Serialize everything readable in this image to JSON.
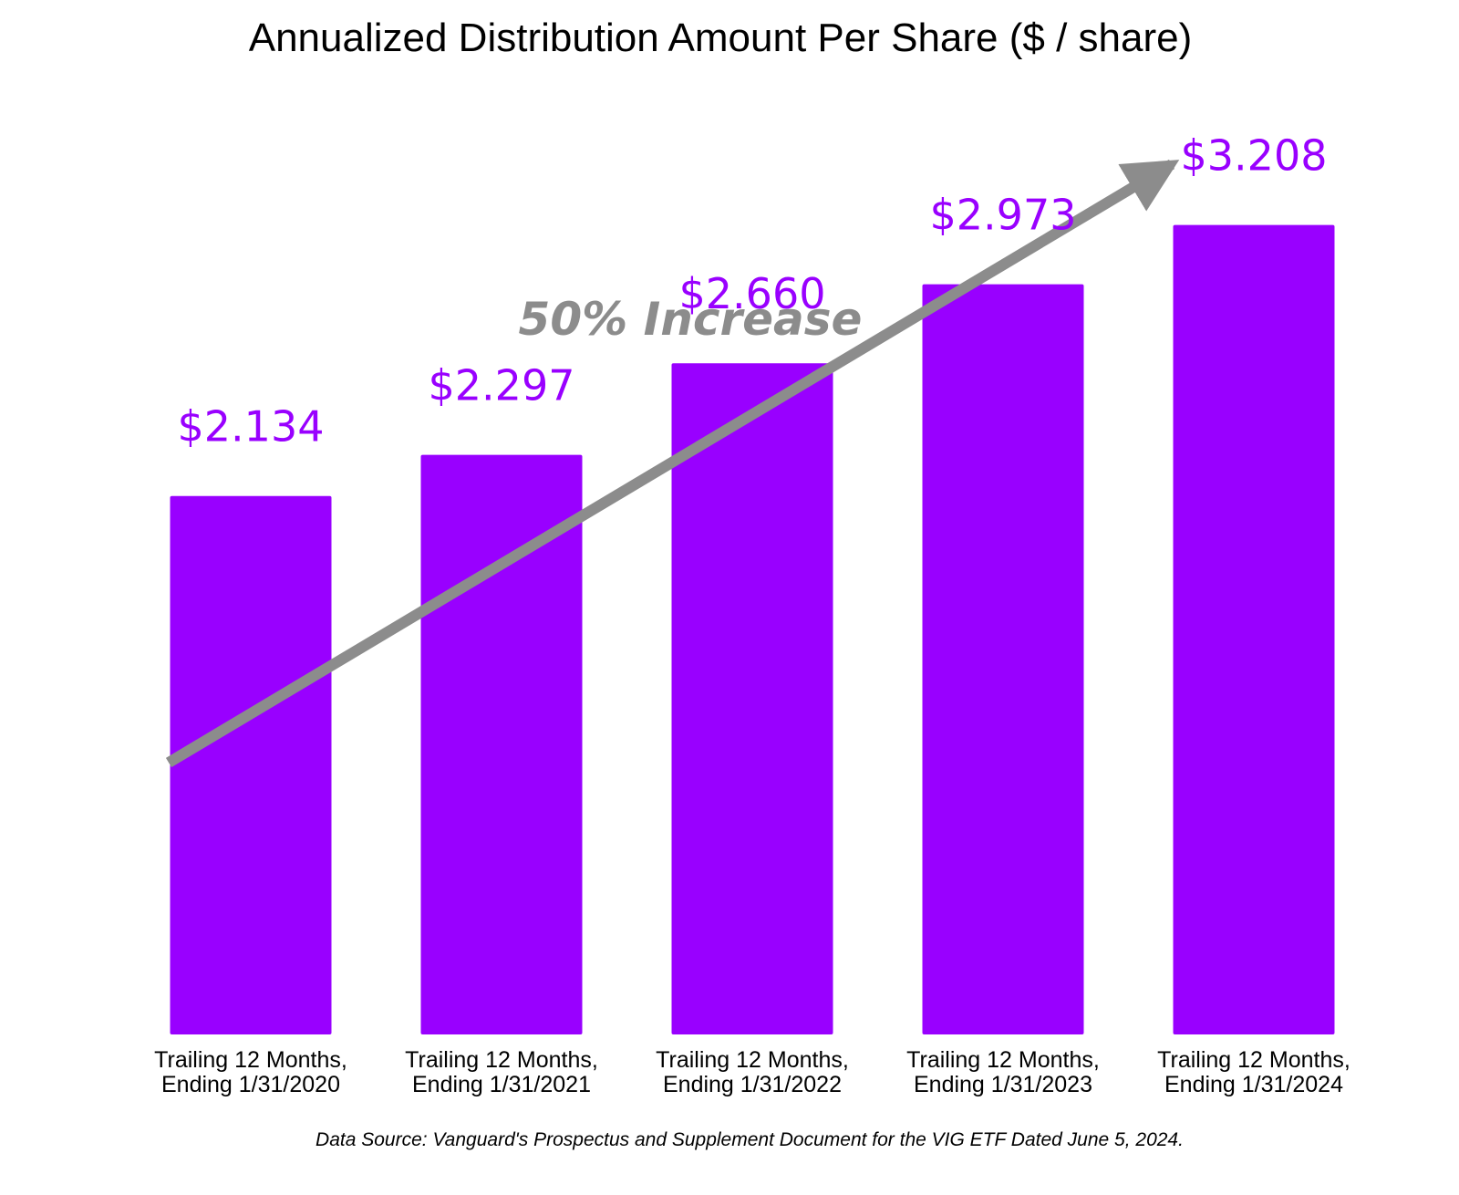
{
  "chart_data": {
    "type": "bar",
    "title": "Annualized Distribution Amount Per Share ($ / share)",
    "categories": [
      [
        "Trailing 12 Months,",
        "Ending 1/31/2020"
      ],
      [
        "Trailing 12 Months,",
        "Ending 1/31/2021"
      ],
      [
        "Trailing 12 Months,",
        "Ending 1/31/2022"
      ],
      [
        "Trailing 12 Months,",
        "Ending 1/31/2023"
      ],
      [
        "Trailing 12 Months,",
        "Ending 1/31/2024"
      ]
    ],
    "values": [
      2.134,
      2.297,
      2.66,
      2.973,
      3.208
    ],
    "value_labels": [
      "$2.134",
      "$2.297",
      "$2.660",
      "$2.973",
      "$3.208"
    ],
    "annotation": "50% Increase",
    "source": "Data Source: Vanguard's Prospectus and Supplement Document for the VIG ETF Dated June 5, 2024.",
    "bar_color": "#9900ff",
    "label_color": "#9900ff",
    "arrow_color": "#8c8c8c",
    "grid": false,
    "legend": "none"
  }
}
